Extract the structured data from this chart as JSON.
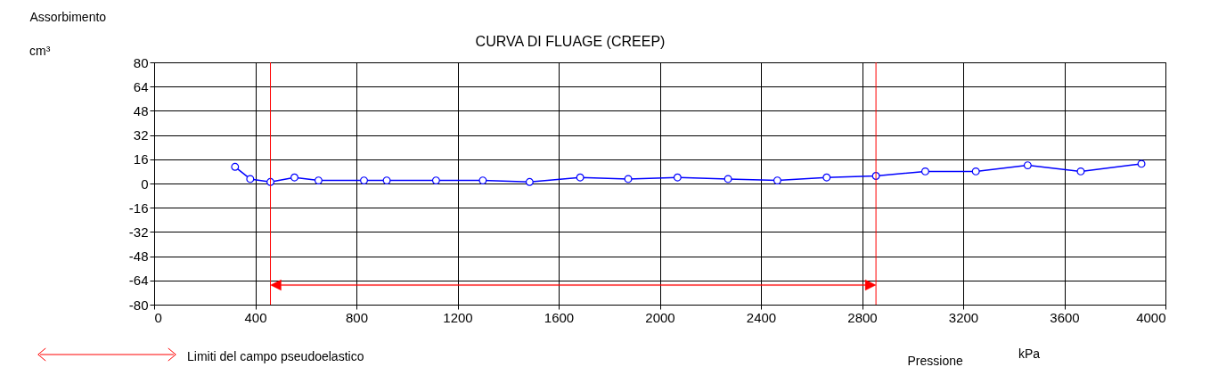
{
  "chart_data": {
    "type": "line",
    "title": "CURVA DI FLUAGE (CREEP)",
    "xlabel": "Pressione",
    "ylabel": "Assorbimento",
    "annotations": [
      "cm³",
      "kPa",
      "Limiti del campo pseudoelastico"
    ],
    "x": [
      320,
      380,
      460,
      555,
      650,
      830,
      920,
      1115,
      1300,
      1485,
      1685,
      1875,
      2070,
      2270,
      2465,
      2660,
      2855,
      3050,
      3250,
      3455,
      3665,
      3905
    ],
    "series": [
      {
        "color": "#0000ff",
        "values": [
          11,
          3,
          1,
          4,
          2,
          2,
          2,
          2,
          2,
          1,
          4,
          3,
          4,
          3,
          2,
          4,
          5,
          8,
          8,
          12,
          8,
          13
        ]
      }
    ],
    "xlim": [
      0,
      4000
    ],
    "xticks": [
      0,
      400,
      800,
      1200,
      1600,
      2000,
      2400,
      2800,
      3200,
      3600,
      4000
    ],
    "ylim": [
      -80,
      80
    ],
    "yticks": [
      -80,
      -64,
      -48,
      -32,
      -16,
      0,
      16,
      32,
      48,
      64,
      80
    ],
    "ref_lines": [
      {
        "axis": "x",
        "value": 460,
        "color": "#ff0000"
      },
      {
        "axis": "x",
        "value": 2855,
        "color": "#ff0000"
      }
    ],
    "grid": true,
    "marker": "circle",
    "line_style": "solid"
  }
}
